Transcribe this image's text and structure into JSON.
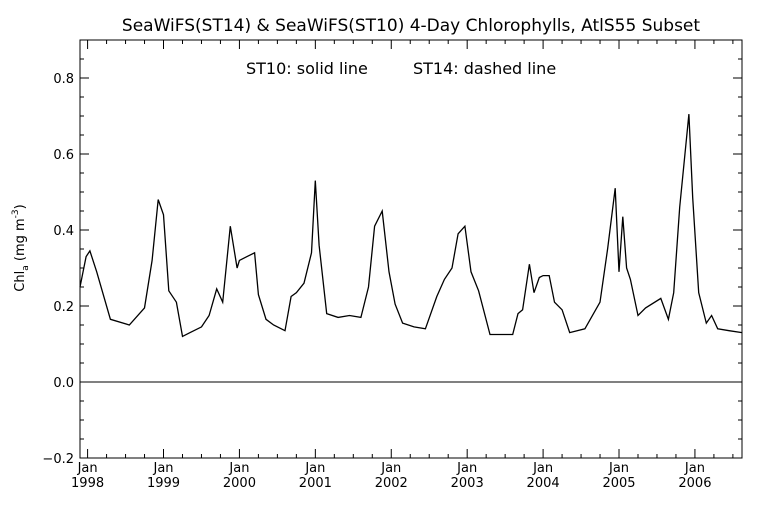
{
  "chart_data": {
    "type": "line",
    "title": "SeaWiFS(ST14) & SeaWiFS(ST10) 4-Day Chlorophylls, AtlS55 Subset",
    "annotation_left": "ST10: solid line",
    "annotation_right": "ST14: dashed line",
    "ylabel": {
      "main": "Chl",
      "sub": "a",
      "unit_open": " (mg m",
      "sup": "-3",
      "unit_close": ")"
    },
    "ylim": [
      -0.2,
      0.9
    ],
    "xlim": [
      1997.9,
      2006.62
    ],
    "yticks": [
      -0.2,
      0.0,
      0.2,
      0.4,
      0.6,
      0.8
    ],
    "ytick_labels": [
      "−0.2",
      "0.0",
      "0.2",
      "0.4",
      "0.6",
      "0.8"
    ],
    "xticks": [
      1998,
      1999,
      2000,
      2001,
      2002,
      2003,
      2004,
      2005,
      2006
    ],
    "xtick_month": "Jan",
    "xtick_years": [
      "1998",
      "1999",
      "2000",
      "2001",
      "2002",
      "2003",
      "2004",
      "2005",
      "2006"
    ],
    "grid": false,
    "reference_line": 0.0,
    "series": [
      {
        "style": "solid",
        "x": [
          1997.9,
          1997.98,
          1998.03,
          1998.12,
          1998.3,
          1998.55,
          1998.75,
          1998.85,
          1998.93,
          1999.0,
          1999.07,
          1999.17,
          1999.25,
          1999.35,
          1999.5,
          1999.6,
          1999.7,
          1999.78,
          1999.88,
          1999.97,
          2000.0,
          2000.1,
          2000.2,
          2000.25,
          2000.35,
          2000.45,
          2000.6,
          2000.68,
          2000.75,
          2000.85,
          2000.95,
          2001.0,
          2001.05,
          2001.15,
          2001.3,
          2001.45,
          2001.6,
          2001.7,
          2001.78,
          2001.88,
          2001.97,
          2002.05,
          2002.15,
          2002.3,
          2002.45,
          2002.6,
          2002.7,
          2002.8,
          2002.88,
          2002.97,
          2003.05,
          2003.15,
          2003.3,
          2003.45,
          2003.6,
          2003.67,
          2003.73,
          2003.82,
          2003.88,
          2003.95,
          2004.0,
          2004.08,
          2004.15,
          2004.25,
          2004.35,
          2004.55,
          2004.75,
          2004.85,
          2004.95,
          2005.0,
          2005.05,
          2005.1,
          2005.15,
          2005.25,
          2005.35,
          2005.55,
          2005.65,
          2005.72,
          2005.8,
          2005.92,
          2005.97,
          2006.05,
          2006.15,
          2006.22,
          2006.3,
          2006.45,
          2006.62
        ],
        "y": [
          0.25,
          0.33,
          0.345,
          0.29,
          0.165,
          0.15,
          0.195,
          0.32,
          0.48,
          0.44,
          0.24,
          0.21,
          0.12,
          0.13,
          0.145,
          0.175,
          0.245,
          0.21,
          0.41,
          0.3,
          0.32,
          0.33,
          0.34,
          0.23,
          0.165,
          0.15,
          0.135,
          0.225,
          0.235,
          0.26,
          0.34,
          0.53,
          0.36,
          0.18,
          0.17,
          0.175,
          0.17,
          0.25,
          0.41,
          0.45,
          0.29,
          0.205,
          0.155,
          0.145,
          0.14,
          0.225,
          0.27,
          0.3,
          0.39,
          0.41,
          0.29,
          0.24,
          0.125,
          0.125,
          0.125,
          0.18,
          0.19,
          0.31,
          0.235,
          0.275,
          0.28,
          0.28,
          0.21,
          0.19,
          0.13,
          0.14,
          0.21,
          0.35,
          0.51,
          0.29,
          0.435,
          0.3,
          0.27,
          0.175,
          0.195,
          0.22,
          0.165,
          0.235,
          0.46,
          0.705,
          0.485,
          0.235,
          0.155,
          0.175,
          0.14,
          0.135,
          0.13
        ]
      }
    ]
  }
}
